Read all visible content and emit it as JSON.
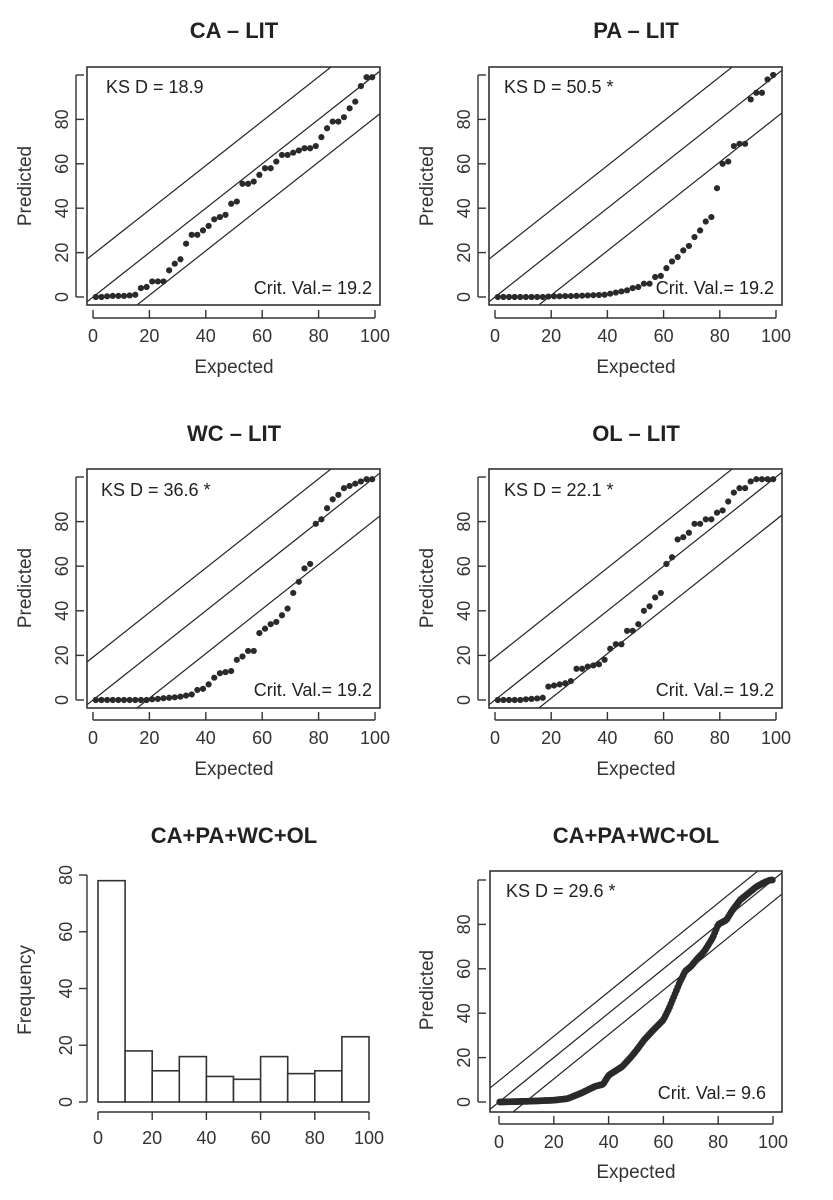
{
  "chart_data": [
    {
      "id": "ca",
      "type": "scatter",
      "title": "CA – LIT",
      "xlabel": "Expected",
      "ylabel": "Predicted",
      "xlim": [
        0,
        100
      ],
      "ylim": [
        0,
        100
      ],
      "xticks": [
        0,
        20,
        40,
        60,
        80,
        100
      ],
      "yticks": [
        0,
        20,
        40,
        60,
        80
      ],
      "reference_lines": {
        "slope": 1,
        "offsets": [
          0,
          19.2,
          -19.2
        ]
      },
      "annotations": {
        "ks": "KS D = 18.9",
        "crit": "Crit. Val.= 19.2"
      },
      "x": [
        1,
        3,
        5,
        7,
        9,
        11,
        13,
        15,
        17,
        19,
        21,
        23,
        25,
        27,
        29,
        31,
        33,
        35,
        37,
        39,
        41,
        43,
        45,
        47,
        49,
        51,
        53,
        55,
        57,
        59,
        61,
        63,
        65,
        67,
        69,
        71,
        73,
        75,
        77,
        79,
        81,
        83,
        85,
        87,
        89,
        91,
        93,
        95,
        97,
        99
      ],
      "y": [
        0,
        0,
        0.3,
        0.5,
        0.5,
        0.5,
        0.7,
        1,
        4,
        4.5,
        7,
        7,
        7,
        12,
        15,
        17,
        24,
        28,
        28,
        30,
        32,
        35,
        36,
        37,
        42,
        43,
        51,
        51,
        52,
        55,
        58,
        58,
        61,
        64,
        64,
        65,
        66,
        67,
        67,
        68,
        72,
        76,
        79,
        79,
        81,
        85,
        88,
        95,
        99,
        99
      ]
    },
    {
      "id": "pa",
      "type": "scatter",
      "title": "PA – LIT",
      "xlabel": "Expected",
      "ylabel": "Predicted",
      "xlim": [
        0,
        100
      ],
      "ylim": [
        0,
        100
      ],
      "xticks": [
        0,
        20,
        40,
        60,
        80,
        100
      ],
      "yticks": [
        0,
        20,
        40,
        60,
        80
      ],
      "reference_lines": {
        "slope": 1,
        "offsets": [
          0,
          19.2,
          -19.2
        ]
      },
      "annotations": {
        "ks": "KS D = 50.5 *",
        "crit": "Crit. Val.= 19.2"
      },
      "x": [
        1,
        3,
        5,
        7,
        9,
        11,
        13,
        15,
        17,
        19,
        21,
        23,
        25,
        27,
        29,
        31,
        33,
        35,
        37,
        39,
        41,
        43,
        45,
        47,
        49,
        51,
        53,
        55,
        57,
        59,
        61,
        63,
        65,
        67,
        69,
        71,
        73,
        75,
        77,
        79,
        81,
        83,
        85,
        87,
        89,
        91,
        93,
        95,
        97,
        99
      ],
      "y": [
        0,
        0,
        0,
        0,
        0,
        0,
        0,
        0,
        0,
        0.2,
        0.3,
        0.3,
        0.4,
        0.4,
        0.5,
        0.6,
        0.7,
        0.8,
        0.9,
        1,
        1.5,
        2,
        2.5,
        3,
        4,
        4.5,
        6,
        6,
        9,
        9.5,
        13,
        16,
        18,
        21,
        23,
        27,
        30,
        34,
        36,
        49,
        60,
        61,
        68,
        69,
        69,
        89,
        92,
        92,
        98,
        100
      ]
    },
    {
      "id": "wc",
      "type": "scatter",
      "title": "WC – LIT",
      "xlabel": "Expected",
      "ylabel": "Predicted",
      "xlim": [
        0,
        100
      ],
      "ylim": [
        0,
        100
      ],
      "xticks": [
        0,
        20,
        40,
        60,
        80,
        100
      ],
      "yticks": [
        0,
        20,
        40,
        60,
        80
      ],
      "reference_lines": {
        "slope": 1,
        "offsets": [
          0,
          19.2,
          -19.2
        ]
      },
      "annotations": {
        "ks": "KS D = 36.6 *",
        "crit": "Crit. Val.= 19.2"
      },
      "x": [
        1,
        3,
        5,
        7,
        9,
        11,
        13,
        15,
        17,
        19,
        21,
        23,
        25,
        27,
        29,
        31,
        33,
        35,
        37,
        39,
        41,
        43,
        45,
        47,
        49,
        51,
        53,
        55,
        57,
        59,
        61,
        63,
        65,
        67,
        69,
        71,
        73,
        75,
        77,
        79,
        81,
        83,
        85,
        87,
        89,
        91,
        93,
        95,
        97,
        99
      ],
      "y": [
        0,
        0,
        0,
        0,
        0,
        0,
        0,
        0,
        0,
        0,
        0.3,
        0.5,
        0.8,
        1,
        1.2,
        1.5,
        2,
        2.5,
        4.5,
        5,
        7,
        10,
        12,
        12.5,
        13,
        18,
        19.5,
        22,
        22,
        30,
        32,
        34,
        35,
        38,
        41,
        48,
        53,
        59,
        61,
        79,
        81,
        86,
        90,
        92,
        95,
        96,
        97,
        98,
        99,
        99
      ]
    },
    {
      "id": "ol",
      "type": "scatter",
      "title": "OL – LIT",
      "xlabel": "Expected",
      "ylabel": "Predicted",
      "xlim": [
        0,
        100
      ],
      "ylim": [
        0,
        100
      ],
      "xticks": [
        0,
        20,
        40,
        60,
        80,
        100
      ],
      "yticks": [
        0,
        20,
        40,
        60,
        80
      ],
      "reference_lines": {
        "slope": 1,
        "offsets": [
          0,
          19.2,
          -19.2
        ]
      },
      "annotations": {
        "ks": "KS D = 22.1 *",
        "crit": "Crit. Val.= 19.2"
      },
      "x": [
        1,
        3,
        5,
        7,
        9,
        11,
        13,
        15,
        17,
        19,
        21,
        23,
        25,
        27,
        29,
        31,
        33,
        35,
        37,
        39,
        41,
        43,
        45,
        47,
        49,
        51,
        53,
        55,
        57,
        59,
        61,
        63,
        65,
        67,
        69,
        71,
        73,
        75,
        77,
        79,
        81,
        83,
        85,
        87,
        89,
        91,
        93,
        95,
        97,
        99
      ],
      "y": [
        0,
        0,
        0,
        0,
        0,
        0.3,
        0.5,
        0.7,
        1,
        6,
        6.5,
        7,
        7.5,
        8.5,
        14,
        14,
        15,
        15.5,
        16,
        18,
        23,
        25,
        25,
        31,
        31,
        34,
        40,
        42,
        46,
        48,
        61,
        64,
        72,
        73,
        75,
        79,
        79,
        81,
        81,
        84,
        85,
        89,
        93,
        95,
        95,
        98,
        99,
        99,
        99,
        99
      ]
    },
    {
      "id": "hist",
      "type": "bar",
      "title": "CA+PA+WC+OL",
      "xlabel": "",
      "ylabel": "Frequency",
      "xlim": [
        0,
        100
      ],
      "ylim": [
        0,
        80
      ],
      "xticks": [
        0,
        20,
        40,
        60,
        80,
        100
      ],
      "yticks": [
        0,
        20,
        40,
        60,
        80
      ],
      "bins": [
        [
          0,
          10
        ],
        [
          10,
          20
        ],
        [
          20,
          30
        ],
        [
          30,
          40
        ],
        [
          40,
          50
        ],
        [
          50,
          60
        ],
        [
          60,
          70
        ],
        [
          70,
          80
        ],
        [
          80,
          90
        ],
        [
          90,
          100
        ]
      ],
      "values": [
        78,
        18,
        11,
        16,
        9,
        8,
        16,
        10,
        11,
        23
      ]
    },
    {
      "id": "all",
      "type": "scatter",
      "title": "CA+PA+WC+OL",
      "xlabel": "Expected",
      "ylabel": "Predicted",
      "xlim": [
        0,
        100
      ],
      "ylim": [
        0,
        100
      ],
      "xticks": [
        0,
        20,
        40,
        60,
        80,
        100
      ],
      "yticks": [
        0,
        20,
        40,
        60,
        80
      ],
      "reference_lines": {
        "slope": 1,
        "offsets": [
          0,
          9.6,
          -9.6
        ]
      },
      "annotations": {
        "ks": "KS D = 29.6 *",
        "crit": "Crit. Val.= 9.6"
      },
      "n_points": 200,
      "curve_control_points": {
        "x": [
          0,
          10,
          20,
          25,
          30,
          35,
          38,
          40,
          45,
          48,
          50,
          53,
          56,
          60,
          62,
          64,
          66,
          68,
          70,
          72,
          75,
          78,
          80,
          83,
          85,
          88,
          91,
          94,
          97,
          99
        ],
        "y": [
          0,
          0.3,
          0.8,
          1.5,
          4,
          7,
          8,
          12,
          16,
          20,
          23,
          28,
          32,
          37,
          42,
          48,
          54,
          59,
          61,
          64,
          68,
          74,
          80,
          82,
          86,
          91,
          94,
          97,
          99,
          100
        ]
      }
    }
  ]
}
